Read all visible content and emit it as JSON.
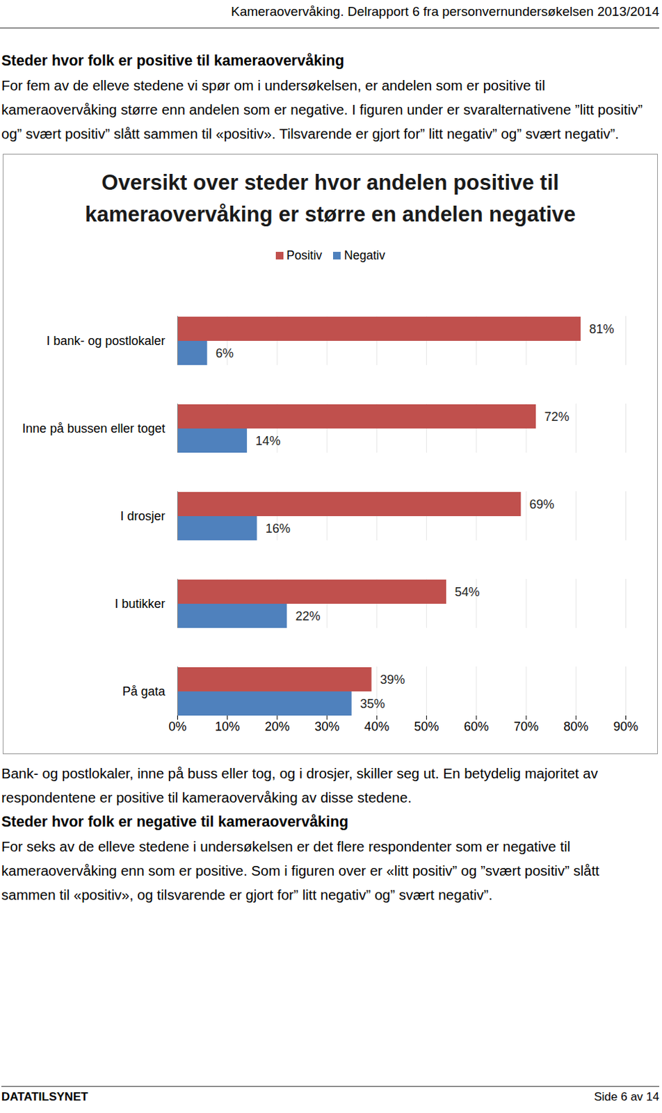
{
  "header": "Kameraovervåking. Delrapport 6 fra personvernundersøkelsen 2013/2014",
  "before_chart": [
    {
      "heading": "Steder hvor folk er positive til kameraovervåking"
    },
    {
      "paragraph": "For fem av de elleve stedene vi spør om i undersøkelsen, er andelen som er positive til kameraovervåking større enn andelen som er negative. I figuren under er svaralternativene ”litt positiv” og” svært positiv” slått sammen til «positiv». Tilsvarende er gjort for” litt negativ” og” svært negativ”."
    }
  ],
  "chart_data": {
    "type": "bar",
    "orientation": "horizontal",
    "title": "Oversikt over steder hvor andelen positive til kameraovervåking er større en andelen negative",
    "categories": [
      "I bank- og postlokaler",
      "Inne på bussen eller toget",
      "I drosjer",
      "I butikker",
      "På gata"
    ],
    "series": [
      {
        "name": "Positiv",
        "color": "#c0504d",
        "values": [
          81,
          72,
          69,
          54,
          39
        ],
        "value_labels": [
          "81%",
          "72%",
          "69%",
          "54%",
          "39%"
        ]
      },
      {
        "name": "Negativ",
        "color": "#4f81bd",
        "values": [
          6,
          14,
          16,
          22,
          35
        ],
        "value_labels": [
          "6%",
          "14%",
          "16%",
          "22%",
          "35%"
        ]
      }
    ],
    "xlim": [
      0,
      90
    ],
    "xticks": [
      {
        "value": 0,
        "label": "0%"
      },
      {
        "value": 10,
        "label": "10%"
      },
      {
        "value": 20,
        "label": "20%"
      },
      {
        "value": 30,
        "label": "30%"
      },
      {
        "value": 40,
        "label": "40%"
      },
      {
        "value": 50,
        "label": "50%"
      },
      {
        "value": 60,
        "label": "60%"
      },
      {
        "value": 70,
        "label": "70%"
      },
      {
        "value": 80,
        "label": "80%"
      },
      {
        "value": 90,
        "label": "90%"
      }
    ],
    "grid": true,
    "legend": "top",
    "data_labels": true
  },
  "after_chart": [
    {
      "paragraph": "Bank- og postlokaler, inne på buss eller tog, og i drosjer, skiller seg ut. En betydelig majoritet av respondentene er positive til kameraovervåking av disse stedene."
    },
    {
      "heading": "Steder hvor folk er negative til kameraovervåking"
    },
    {
      "paragraph": "For seks av de elleve stedene i undersøkelsen er det flere respondenter som er negative til kameraovervåking enn som er positive. Som i figuren over er «litt positiv” og ”svært positiv” slått sammen til «positiv», og tilsvarende er gjort for” litt negativ” og” svært negativ”."
    }
  ],
  "footer": {
    "left": "DATATILSYNET",
    "right": "Side 6 av 14"
  }
}
